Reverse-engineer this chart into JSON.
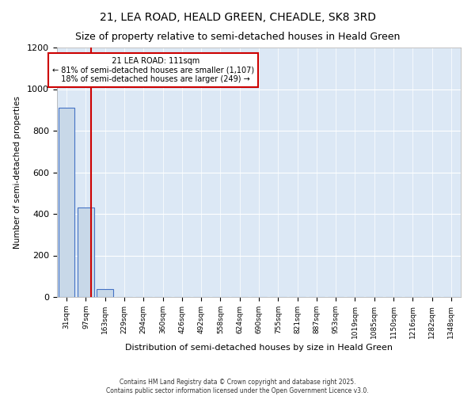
{
  "title": "21, LEA ROAD, HEALD GREEN, CHEADLE, SK8 3RD",
  "subtitle": "Size of property relative to semi-detached houses in Heald Green",
  "xlabel": "Distribution of semi-detached houses by size in Heald Green",
  "ylabel": "Number of semi-detached properties",
  "bin_labels": [
    "31sqm",
    "97sqm",
    "163sqm",
    "229sqm",
    "294sqm",
    "360sqm",
    "426sqm",
    "492sqm",
    "558sqm",
    "624sqm",
    "690sqm",
    "755sqm",
    "821sqm",
    "887sqm",
    "953sqm",
    "1019sqm",
    "1085sqm",
    "1150sqm",
    "1216sqm",
    "1282sqm",
    "1348sqm"
  ],
  "bin_values": [
    910,
    430,
    40,
    0,
    0,
    0,
    0,
    0,
    0,
    0,
    0,
    0,
    0,
    0,
    0,
    0,
    0,
    0,
    0,
    0,
    0
  ],
  "bar_color": "#c8d8e8",
  "bar_edge_color": "#4472c4",
  "property_label": "21 LEA ROAD: 111sqm",
  "pct_smaller": 81,
  "pct_larger": 18,
  "n_smaller": 1107,
  "n_larger": 249,
  "red_line_color": "#cc0000",
  "ylim": [
    0,
    1200
  ],
  "yticks": [
    0,
    200,
    400,
    600,
    800,
    1000,
    1200
  ],
  "footer_line1": "Contains HM Land Registry data © Crown copyright and database right 2025.",
  "footer_line2": "Contains public sector information licensed under the Open Government Licence v3.0.",
  "plot_bg_color": "#dce8f5",
  "fig_bg_color": "#ffffff",
  "grid_color": "#ffffff",
  "title_fontsize": 10,
  "subtitle_fontsize": 9,
  "annotation_fontsize": 7,
  "red_line_x": 1.27
}
